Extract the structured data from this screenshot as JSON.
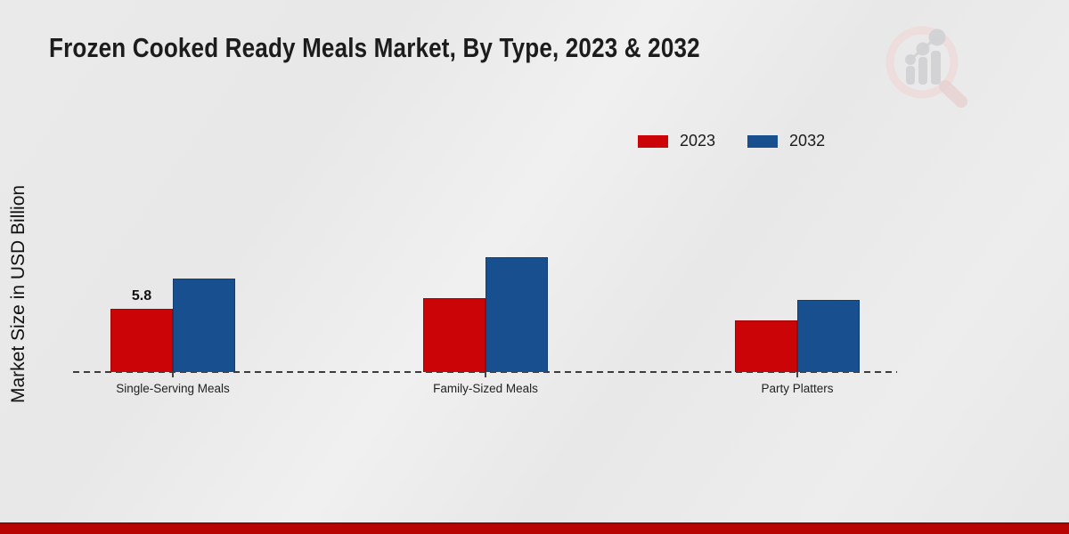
{
  "chart": {
    "title": "Frozen Cooked Ready Meals Market, By Type, 2023 & 2032",
    "y_axis_label": "Market Size in USD Billion"
  },
  "chart_data": {
    "type": "bar",
    "title": "Frozen Cooked Ready Meals Market, By Type, 2023 & 2032",
    "xlabel": "",
    "ylabel": "Market Size in USD Billion",
    "categories": [
      "Single-Serving Meals",
      "Family-Sized Meals",
      "Party Platters"
    ],
    "series": [
      {
        "name": "2023",
        "color": "#cb0507",
        "values": [
          5.8,
          6.8,
          4.7
        ],
        "bar_labels": [
          "5.8",
          null,
          null
        ]
      },
      {
        "name": "2032",
        "color": "#174f8f",
        "values": [
          8.6,
          10.5,
          6.6
        ],
        "bar_labels": [
          null,
          null,
          null
        ]
      }
    ],
    "ylim": [
      0,
      11.6
    ],
    "grid": false,
    "legend_position": "top-right",
    "baseline_style": "dashed",
    "units": "USD Billion"
  },
  "watermark": {
    "icon": "magnifier-bar-chart-logo"
  },
  "colors": {
    "series_2023": "#cb0507",
    "series_2032": "#174f8f",
    "footer_band": "#b90404",
    "background": "#eaeaea",
    "baseline": "#3c3c3c"
  }
}
